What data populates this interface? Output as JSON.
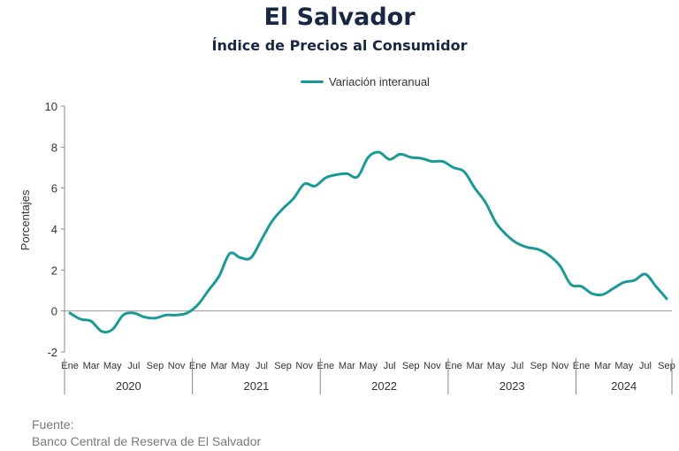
{
  "header": {
    "title": "El Salvador",
    "subtitle": "Índice de Precios al Consumidor"
  },
  "source": {
    "label": "Fuente:",
    "value": "Banco Central de Reserva de El Salvador"
  },
  "colors": {
    "line": "#1a9a96",
    "axis": "#888888",
    "text": "#333333"
  },
  "chart_data": {
    "type": "line",
    "title": "",
    "xlabel": "",
    "ylabel": "Porcentajes",
    "ylim": [
      -2,
      10
    ],
    "yticks": [
      "-2",
      "0",
      "2",
      "4",
      "6",
      "8",
      "10"
    ],
    "grid": false,
    "legend_position": "top-center",
    "month_labels": [
      "Ene",
      "Mar",
      "May",
      "Jul",
      "Sep",
      "Nov"
    ],
    "years": [
      "2020",
      "2021",
      "2022",
      "2023",
      "2024"
    ],
    "last_year_month_labels": [
      "Ene",
      "Mar",
      "May",
      "Jul",
      "Sep"
    ],
    "series": [
      {
        "name": "Variación interanual",
        "x": [
          "2020-01",
          "2020-02",
          "2020-03",
          "2020-04",
          "2020-05",
          "2020-06",
          "2020-07",
          "2020-08",
          "2020-09",
          "2020-10",
          "2020-11",
          "2020-12",
          "2021-01",
          "2021-02",
          "2021-03",
          "2021-04",
          "2021-05",
          "2021-06",
          "2021-07",
          "2021-08",
          "2021-09",
          "2021-10",
          "2021-11",
          "2021-12",
          "2022-01",
          "2022-02",
          "2022-03",
          "2022-04",
          "2022-05",
          "2022-06",
          "2022-07",
          "2022-08",
          "2022-09",
          "2022-10",
          "2022-11",
          "2022-12",
          "2023-01",
          "2023-02",
          "2023-03",
          "2023-04",
          "2023-05",
          "2023-06",
          "2023-07",
          "2023-08",
          "2023-09",
          "2023-10",
          "2023-11",
          "2023-12",
          "2024-01",
          "2024-02",
          "2024-03",
          "2024-04",
          "2024-05",
          "2024-06",
          "2024-07",
          "2024-08",
          "2024-09"
        ],
        "values": [
          -0.1,
          -0.4,
          -0.5,
          -1.0,
          -0.9,
          -0.2,
          -0.1,
          -0.3,
          -0.35,
          -0.2,
          -0.2,
          -0.1,
          0.3,
          1.0,
          1.7,
          2.8,
          2.6,
          2.6,
          3.5,
          4.4,
          5.0,
          5.5,
          6.2,
          6.1,
          6.5,
          6.65,
          6.7,
          6.55,
          7.5,
          7.75,
          7.4,
          7.65,
          7.5,
          7.45,
          7.3,
          7.3,
          7.0,
          6.8,
          6.0,
          5.3,
          4.3,
          3.7,
          3.3,
          3.1,
          3.0,
          2.7,
          2.2,
          1.3,
          1.2,
          0.85,
          0.8,
          1.1,
          1.4,
          1.5,
          1.8,
          1.2,
          0.6
        ]
      }
    ]
  }
}
